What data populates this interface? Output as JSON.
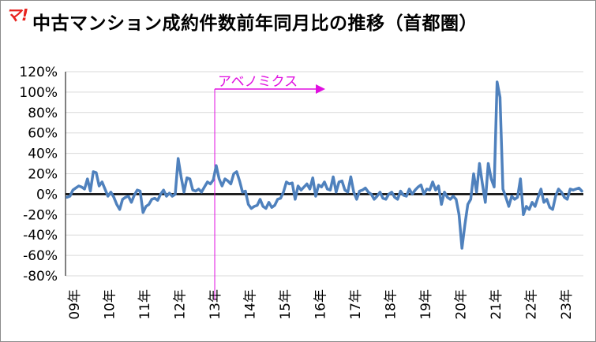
{
  "badge": {
    "text": "マ!"
  },
  "title": "中古マンション成約件数前年同月比の推移（首都圏）",
  "chart_data": {
    "type": "line",
    "title": "中古マンション成約件数前年同月比の推移（首都圏）",
    "ylim": [
      -80,
      120
    ],
    "yticks": [
      -80,
      -60,
      -40,
      -20,
      0,
      20,
      40,
      60,
      80,
      100,
      120
    ],
    "ytick_labels": [
      "-80%",
      "-60%",
      "-40%",
      "-20%",
      "0%",
      "20%",
      "40%",
      "60%",
      "80%",
      "100%",
      "120%"
    ],
    "xtick_labels": [
      "09年",
      "10年",
      "11年",
      "12年",
      "13年",
      "14年",
      "15年",
      "16年",
      "17年",
      "18年",
      "19年",
      "20年",
      "21年",
      "22年",
      "23年"
    ],
    "grid": "horizontal",
    "legend": "none",
    "annotation": {
      "text": "アベノミクス",
      "at_label": "13年",
      "color": "#e00ee0"
    },
    "series": [
      {
        "color": "#4f81bd",
        "values": [
          -3,
          -2,
          4,
          6,
          8,
          7,
          5,
          15,
          3,
          22,
          21,
          8,
          12,
          5,
          -2,
          2,
          -3,
          -10,
          -15,
          -5,
          -3,
          -2,
          -8,
          -1,
          4,
          3,
          -18,
          -12,
          -10,
          -5,
          -4,
          -6,
          0,
          4,
          -2,
          1,
          -2,
          0,
          35,
          17,
          2,
          16,
          15,
          4,
          3,
          5,
          2,
          7,
          12,
          10,
          14,
          28,
          15,
          8,
          15,
          13,
          10,
          20,
          22,
          13,
          2,
          3,
          -10,
          -14,
          -12,
          -11,
          -5,
          -12,
          -14,
          -8,
          -13,
          -11,
          -5,
          -4,
          2,
          12,
          10,
          11,
          -5,
          8,
          4,
          7,
          10,
          5,
          16,
          -2,
          9,
          7,
          12,
          5,
          4,
          17,
          2,
          12,
          13,
          4,
          2,
          17,
          2,
          -5,
          3,
          4,
          6,
          2,
          0,
          -5,
          -2,
          2,
          -4,
          -5,
          0,
          2,
          -3,
          -5,
          3,
          -1,
          -2,
          5,
          0,
          4,
          7,
          9,
          0,
          5,
          4,
          12,
          4,
          8,
          -10,
          2,
          -3,
          -5,
          -2,
          -5,
          -20,
          -53,
          -30,
          -10,
          -5,
          20,
          2,
          30,
          10,
          -8,
          30,
          15,
          7,
          110,
          95,
          5,
          -3,
          -12,
          -2,
          -5,
          -3,
          15,
          -20,
          -12,
          -15,
          -8,
          -12,
          -3,
          5,
          -8,
          -5,
          -13,
          -15,
          -2,
          5,
          2,
          -3,
          -5,
          5,
          4,
          5,
          6,
          3
        ],
        "x_start": "09年"
      }
    ]
  }
}
